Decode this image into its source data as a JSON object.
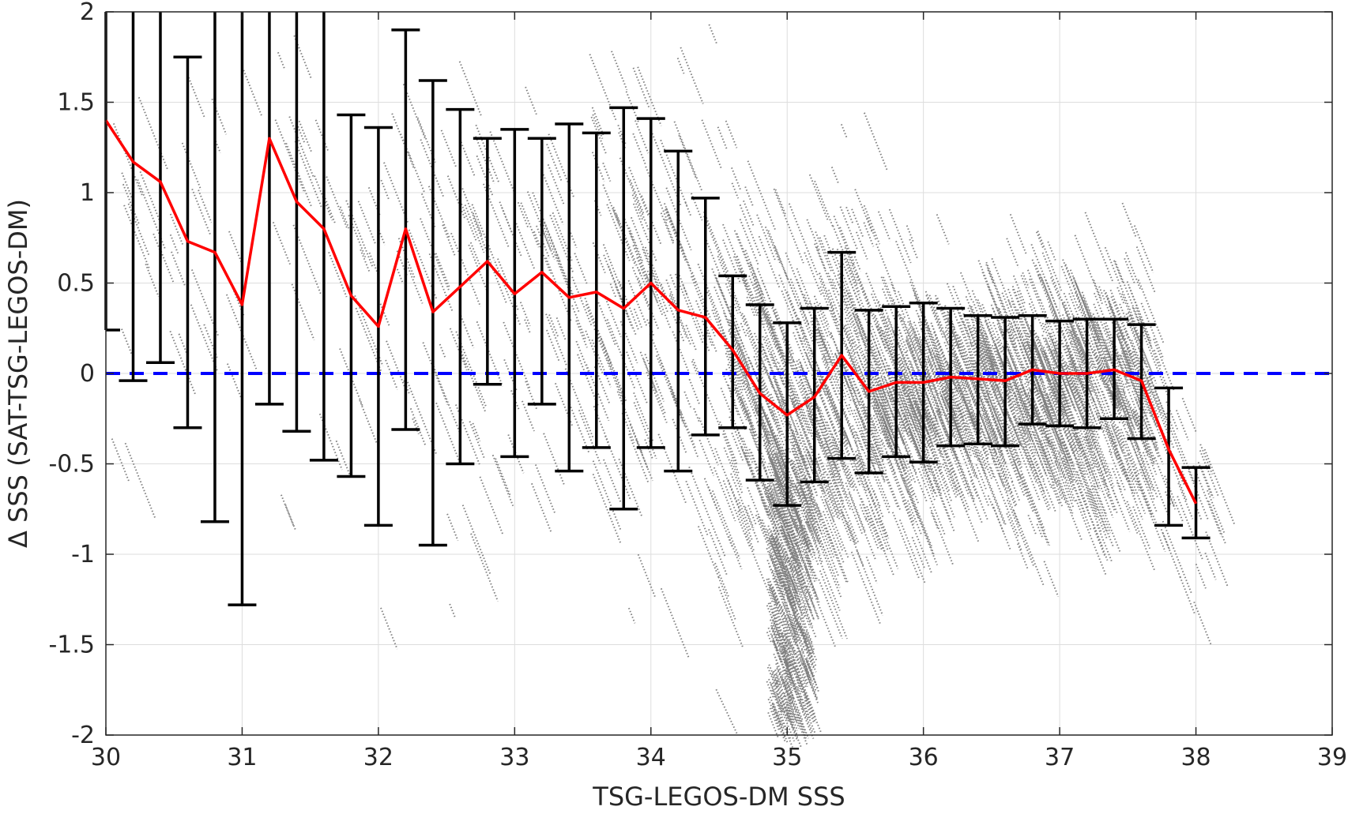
{
  "chart_data": {
    "type": "scatter",
    "xlabel": "TSG-LEGOS-DM SSS",
    "ylabel": "Δ SSS (SAT-TSG-LEGOS-DM)",
    "xlim": [
      30,
      39
    ],
    "ylim": [
      -2,
      2
    ],
    "x_ticks": [
      "30",
      "31",
      "32",
      "33",
      "34",
      "35",
      "36",
      "37",
      "38",
      "39"
    ],
    "y_ticks": [
      "2",
      "1.5",
      "1",
      "0.5",
      "0",
      "-0.5",
      "-1",
      "-1.5",
      "-2"
    ],
    "grid": true,
    "colors": {
      "scatter": "#808080",
      "mean_line": "#ff0000",
      "error_bars": "#000000",
      "zero_line": "#0000ff"
    },
    "zero_line": {
      "y": 0,
      "style": "dashed"
    },
    "binned_statistics": {
      "x": [
        30.0,
        30.2,
        30.4,
        30.6,
        30.8,
        31.0,
        31.2,
        31.4,
        31.6,
        31.8,
        32.0,
        32.2,
        32.4,
        32.6,
        32.8,
        33.0,
        33.2,
        33.4,
        33.6,
        33.8,
        34.0,
        34.2,
        34.4,
        34.6,
        34.8,
        35.0,
        35.2,
        35.4,
        35.6,
        35.8,
        36.0,
        36.2,
        36.4,
        36.6,
        36.8,
        37.0,
        37.2,
        37.4,
        37.6,
        37.8,
        38.0
      ],
      "mean": [
        1.4,
        1.17,
        1.06,
        0.73,
        0.67,
        0.38,
        1.3,
        0.95,
        0.8,
        0.43,
        0.26,
        0.8,
        0.34,
        0.48,
        0.62,
        0.44,
        0.56,
        0.42,
        0.45,
        0.36,
        0.5,
        0.35,
        0.31,
        0.13,
        -0.11,
        -0.23,
        -0.13,
        0.1,
        -0.1,
        -0.05,
        -0.05,
        -0.02,
        -0.03,
        -0.04,
        0.02,
        0.0,
        0.0,
        0.02,
        -0.04,
        -0.42,
        -0.72
      ],
      "upper": [
        2.0,
        2.0,
        2.0,
        1.75,
        2.0,
        2.0,
        2.0,
        2.0,
        2.0,
        1.43,
        1.36,
        1.9,
        1.62,
        1.46,
        1.3,
        1.35,
        1.3,
        1.38,
        1.33,
        1.47,
        1.41,
        1.23,
        0.97,
        0.54,
        0.38,
        0.28,
        0.36,
        0.67,
        0.35,
        0.37,
        0.39,
        0.36,
        0.32,
        0.31,
        0.32,
        0.29,
        0.3,
        0.3,
        0.27,
        -0.08,
        -0.52
      ],
      "lower": [
        0.24,
        -0.04,
        0.06,
        -0.3,
        -0.82,
        -1.28,
        -0.17,
        -0.32,
        -0.48,
        -0.57,
        -0.84,
        -0.31,
        -0.95,
        -0.5,
        -0.06,
        -0.46,
        -0.17,
        -0.54,
        -0.41,
        -0.75,
        -0.41,
        -0.54,
        -0.34,
        -0.3,
        -0.59,
        -0.73,
        -0.6,
        -0.47,
        -0.55,
        -0.46,
        -0.49,
        -0.4,
        -0.39,
        -0.4,
        -0.28,
        -0.29,
        -0.3,
        -0.25,
        -0.36,
        -0.84,
        -0.91
      ]
    }
  }
}
